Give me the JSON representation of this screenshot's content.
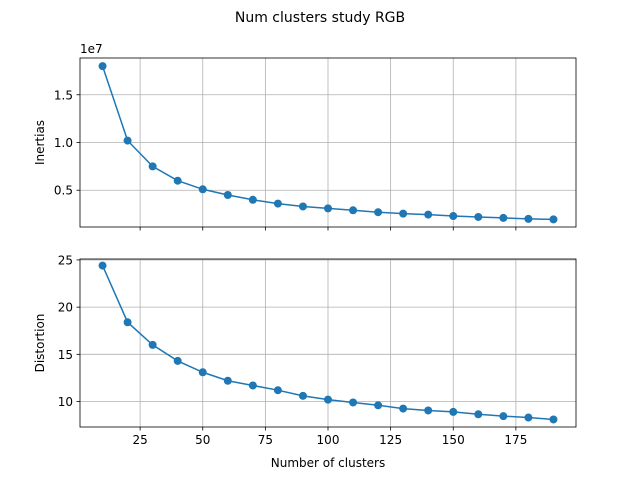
{
  "figure": {
    "title": "Num clusters study RGB"
  },
  "colors": {
    "series": "#1f77b4",
    "grid": "#b0b0b0",
    "axis": "#000000",
    "background": "#ffffff"
  },
  "chart_data": [
    {
      "type": "line",
      "marker": "circle",
      "x": [
        10,
        20,
        30,
        40,
        50,
        60,
        70,
        80,
        90,
        100,
        110,
        120,
        130,
        140,
        150,
        160,
        170,
        180,
        190
      ],
      "series": [
        {
          "values": [
            18.0,
            10.2,
            7.5,
            6.0,
            5.1,
            4.5,
            4.0,
            3.6,
            3.3,
            3.1,
            2.9,
            2.7,
            2.55,
            2.45,
            2.3,
            2.2,
            2.1,
            2.0,
            1.95
          ]
        }
      ],
      "title": "",
      "xlabel": "",
      "ylabel": "Inertias",
      "offset_text": "1e7",
      "xlim": [
        1,
        199
      ],
      "ylim": [
        1.15,
        18.85
      ],
      "xticks": [
        25,
        50,
        75,
        100,
        125,
        150,
        175
      ],
      "xtick_labels": [],
      "yticks": [
        0.5,
        1.0,
        1.5
      ],
      "ytick_values": [
        5,
        10,
        15
      ],
      "ytick_labels": [
        "0.5",
        "1.0",
        "1.5"
      ],
      "grid": true,
      "legend": "none"
    },
    {
      "type": "line",
      "marker": "circle",
      "x": [
        10,
        20,
        30,
        40,
        50,
        60,
        70,
        80,
        90,
        100,
        110,
        120,
        130,
        140,
        150,
        160,
        170,
        180,
        190
      ],
      "series": [
        {
          "values": [
            24.4,
            18.4,
            16.0,
            14.3,
            13.1,
            12.2,
            11.7,
            11.2,
            10.6,
            10.2,
            9.9,
            9.6,
            9.25,
            9.05,
            8.9,
            8.65,
            8.45,
            8.3,
            8.1
          ]
        }
      ],
      "title": "",
      "xlabel": "Number of clusters",
      "ylabel": "Distortion",
      "xlim": [
        1,
        199
      ],
      "ylim": [
        7.3,
        25.1
      ],
      "xticks": [
        25,
        50,
        75,
        100,
        125,
        150,
        175
      ],
      "xtick_labels": [
        "25",
        "50",
        "75",
        "100",
        "125",
        "150",
        "175"
      ],
      "yticks": [
        10,
        15,
        20,
        25
      ],
      "ytick_labels": [
        "10",
        "15",
        "20",
        "25"
      ],
      "grid": true,
      "legend": "none"
    }
  ]
}
